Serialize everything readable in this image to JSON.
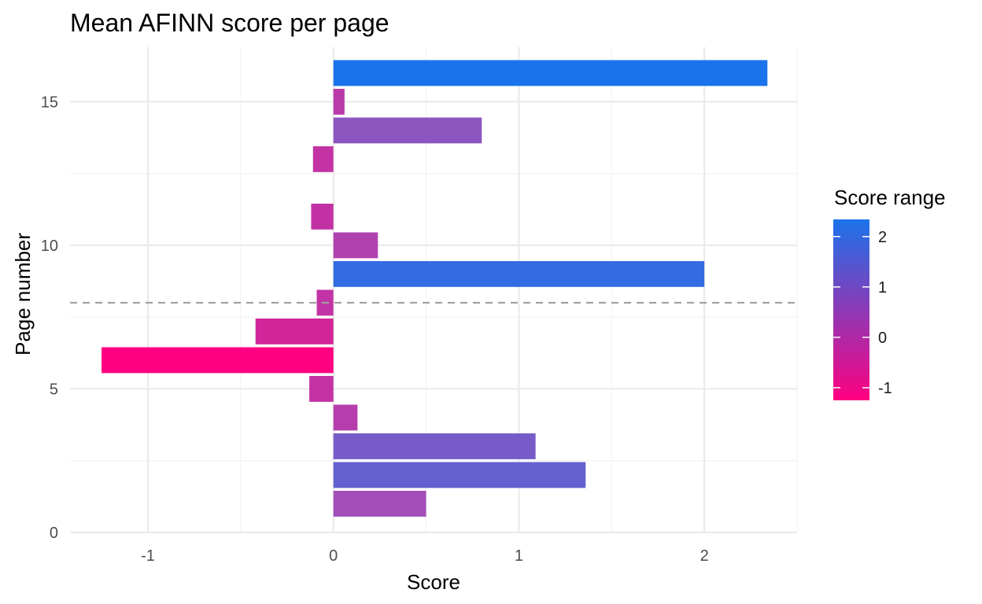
{
  "chart_data": {
    "type": "bar",
    "orientation": "horizontal",
    "title": "Mean AFINN score per page",
    "xlabel": "Score",
    "ylabel": "Page number",
    "xlim": [
      -1.42,
      2.5
    ],
    "ylim": [
      0,
      16.9
    ],
    "x_ticks": [
      -1,
      0,
      1,
      2
    ],
    "x_tick_labels": [
      "-1",
      "0",
      "1",
      "2"
    ],
    "y_ticks": [
      0,
      5,
      10,
      15
    ],
    "y_tick_labels": [
      "0",
      "5",
      "10",
      "15"
    ],
    "grid": true,
    "reference_line": {
      "axis": "y",
      "value": 8,
      "style": "dashed",
      "color": "#a0a0a0"
    },
    "pages": [
      1,
      2,
      3,
      4,
      5,
      6,
      7,
      8,
      9,
      10,
      11,
      13,
      14,
      15,
      16
    ],
    "values": [
      0.5,
      1.36,
      1.09,
      0.13,
      -0.13,
      -1.25,
      -0.42,
      -0.09,
      2.0,
      0.24,
      -0.12,
      -0.11,
      0.8,
      0.06,
      2.34
    ],
    "legend": {
      "title": "Score range",
      "position": "right",
      "ticks": [
        2,
        1,
        0,
        -1
      ],
      "tick_labels": [
        "2",
        "1",
        "0",
        "-1"
      ],
      "range": [
        -1.25,
        2.34
      ],
      "low_color": "#ff0080",
      "high_color": "#1a73eb"
    }
  }
}
